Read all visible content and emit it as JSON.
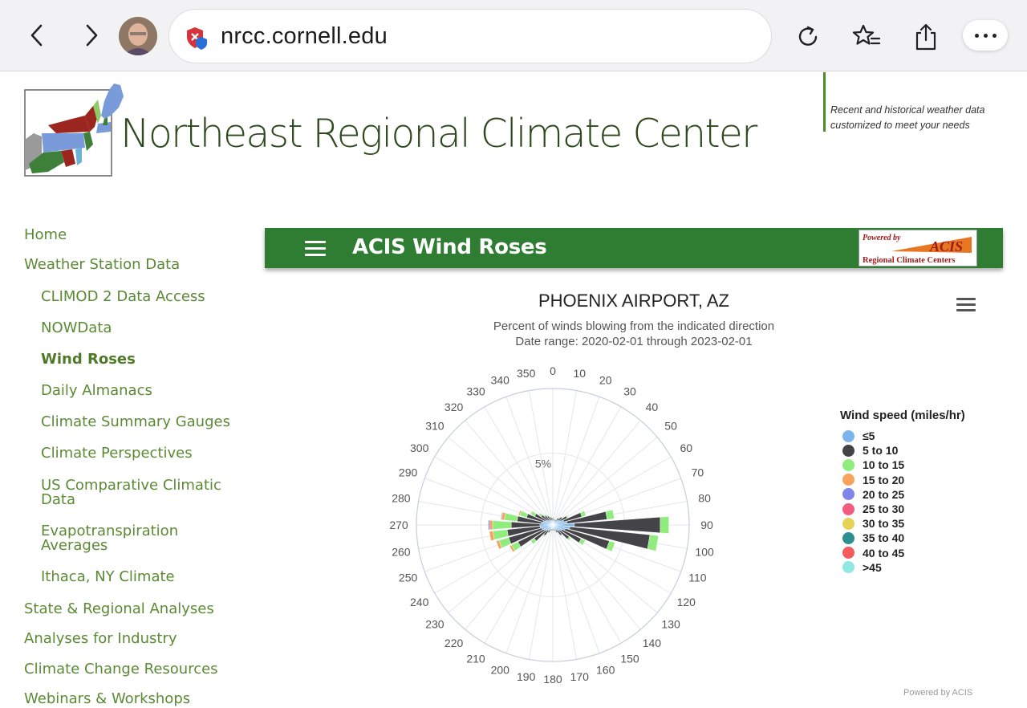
{
  "browser": {
    "url": "nrcc.cornell.edu"
  },
  "site": {
    "title": "Northeast Regional Climate Center",
    "tagline_line1": "Recent and historical weather data",
    "tagline_line2": "customized to meet your needs"
  },
  "sidebar": {
    "items": [
      {
        "label": "Home"
      },
      {
        "label": "Weather Station Data"
      },
      {
        "label": "CLIMOD 2 Data Access"
      },
      {
        "label": "NOWData"
      },
      {
        "label": "Wind Roses"
      },
      {
        "label": "Daily Almanacs"
      },
      {
        "label": "Climate Summary Gauges"
      },
      {
        "label": "Climate Perspectives"
      },
      {
        "label": "US Comparative Climatic"
      },
      {
        "label": "Data"
      },
      {
        "label": "Evapotranspiration"
      },
      {
        "label": "Averages"
      },
      {
        "label": "Ithaca, NY Climate"
      },
      {
        "label": "State & Regional Analyses"
      },
      {
        "label": "Analyses for Industry"
      },
      {
        "label": "Climate Change Resources"
      },
      {
        "label": "Webinars & Workshops"
      }
    ]
  },
  "acis": {
    "title": "ACIS Wind Roses",
    "badge_powered": "Powered by",
    "badge_acis": "ACIS",
    "badge_rcc": "Regional Climate Centers"
  },
  "chart_data": {
    "type": "wind-rose",
    "title": "PHOENIX AIRPORT, AZ",
    "subtitle_line1": "Percent of winds blowing from the indicated direction",
    "subtitle_line2": "Date range: 2020-02-01 through 2023-02-01",
    "radial_label": "5%",
    "directions": [
      "0",
      "10",
      "20",
      "30",
      "40",
      "50",
      "60",
      "70",
      "80",
      "90",
      "100",
      "110",
      "120",
      "130",
      "140",
      "150",
      "160",
      "170",
      "180",
      "190",
      "200",
      "210",
      "220",
      "230",
      "240",
      "250",
      "260",
      "270",
      "280",
      "290",
      "300",
      "310",
      "320",
      "330",
      "340",
      "350"
    ],
    "legend_title": "Wind speed (miles/hr)",
    "series": [
      {
        "name": "≤5",
        "color": "#7cb5ec"
      },
      {
        "name": "5 to 10",
        "color": "#434348"
      },
      {
        "name": "10 to 15",
        "color": "#90ed7d"
      },
      {
        "name": "15 to 20",
        "color": "#f7a35c"
      },
      {
        "name": "20 to 25",
        "color": "#8085e9"
      },
      {
        "name": "25 to 30",
        "color": "#f15c80"
      },
      {
        "name": "30 to 35",
        "color": "#e4d354"
      },
      {
        "name": "35 to 40",
        "color": "#2b908f"
      },
      {
        "name": "40 to 45",
        "color": "#f45b5b"
      },
      {
        "name": ">45",
        "color": "#91e8e1"
      }
    ],
    "petals": [
      {
        "dir": 0,
        "values": [
          0.3,
          0.2,
          0.05
        ]
      },
      {
        "dir": 10,
        "values": [
          0.3,
          0.1,
          0.0
        ]
      },
      {
        "dir": 20,
        "values": [
          0.3,
          0.1,
          0.0
        ]
      },
      {
        "dir": 30,
        "values": [
          0.3,
          0.1,
          0.0
        ]
      },
      {
        "dir": 40,
        "values": [
          0.4,
          0.2,
          0.05
        ]
      },
      {
        "dir": 50,
        "values": [
          0.5,
          0.3,
          0.05
        ]
      },
      {
        "dir": 60,
        "values": [
          0.6,
          0.5,
          0.1
        ]
      },
      {
        "dir": 70,
        "values": [
          0.8,
          1.3,
          0.3
        ]
      },
      {
        "dir": 80,
        "values": [
          1.0,
          2.8,
          0.5
        ]
      },
      {
        "dir": 90,
        "values": [
          1.5,
          6.0,
          0.6
        ]
      },
      {
        "dir": 100,
        "values": [
          1.2,
          5.6,
          0.6
        ]
      },
      {
        "dir": 110,
        "values": [
          0.9,
          3.2,
          0.4
        ]
      },
      {
        "dir": 120,
        "values": [
          0.7,
          1.5,
          0.3
        ]
      },
      {
        "dir": 130,
        "values": [
          0.6,
          0.8,
          0.15
        ]
      },
      {
        "dir": 140,
        "values": [
          0.5,
          0.4,
          0.05
        ]
      },
      {
        "dir": 150,
        "values": [
          0.4,
          0.2,
          0.0
        ]
      },
      {
        "dir": 160,
        "values": [
          0.3,
          0.1,
          0.0
        ]
      },
      {
        "dir": 170,
        "values": [
          0.3,
          0.1,
          0.0
        ]
      },
      {
        "dir": 180,
        "values": [
          0.3,
          0.1,
          0.0
        ]
      },
      {
        "dir": 190,
        "values": [
          0.3,
          0.1,
          0.0
        ]
      },
      {
        "dir": 200,
        "values": [
          0.3,
          0.1,
          0.0
        ]
      },
      {
        "dir": 210,
        "values": [
          0.4,
          0.2,
          0.05
        ]
      },
      {
        "dir": 220,
        "values": [
          0.5,
          0.4,
          0.1
        ]
      },
      {
        "dir": 230,
        "values": [
          0.6,
          1.0,
          0.3
        ]
      },
      {
        "dir": 240,
        "values": [
          0.7,
          2.0,
          0.5,
          0.15
        ]
      },
      {
        "dir": 250,
        "values": [
          0.8,
          2.4,
          0.7,
          0.2
        ]
      },
      {
        "dir": 260,
        "values": [
          0.9,
          2.3,
          1.0,
          0.25
        ]
      },
      {
        "dir": 270,
        "values": [
          0.9,
          2.0,
          1.3,
          0.2,
          0.1
        ]
      },
      {
        "dir": 280,
        "values": [
          0.8,
          1.7,
          0.9,
          0.2,
          0.05
        ]
      },
      {
        "dir": 290,
        "values": [
          0.7,
          1.2,
          0.5,
          0.1
        ]
      },
      {
        "dir": 300,
        "values": [
          0.6,
          0.8,
          0.3,
          0.05
        ]
      },
      {
        "dir": 310,
        "values": [
          0.5,
          0.5,
          0.2
        ]
      },
      {
        "dir": 320,
        "values": [
          0.4,
          0.4,
          0.1
        ]
      },
      {
        "dir": 330,
        "values": [
          0.4,
          0.3,
          0.1
        ]
      },
      {
        "dir": 340,
        "values": [
          0.3,
          0.3,
          0.05
        ]
      },
      {
        "dir": 350,
        "values": [
          0.3,
          0.2,
          0.05
        ]
      }
    ],
    "rmax": 9.5,
    "credits": "Powered by ACIS"
  }
}
